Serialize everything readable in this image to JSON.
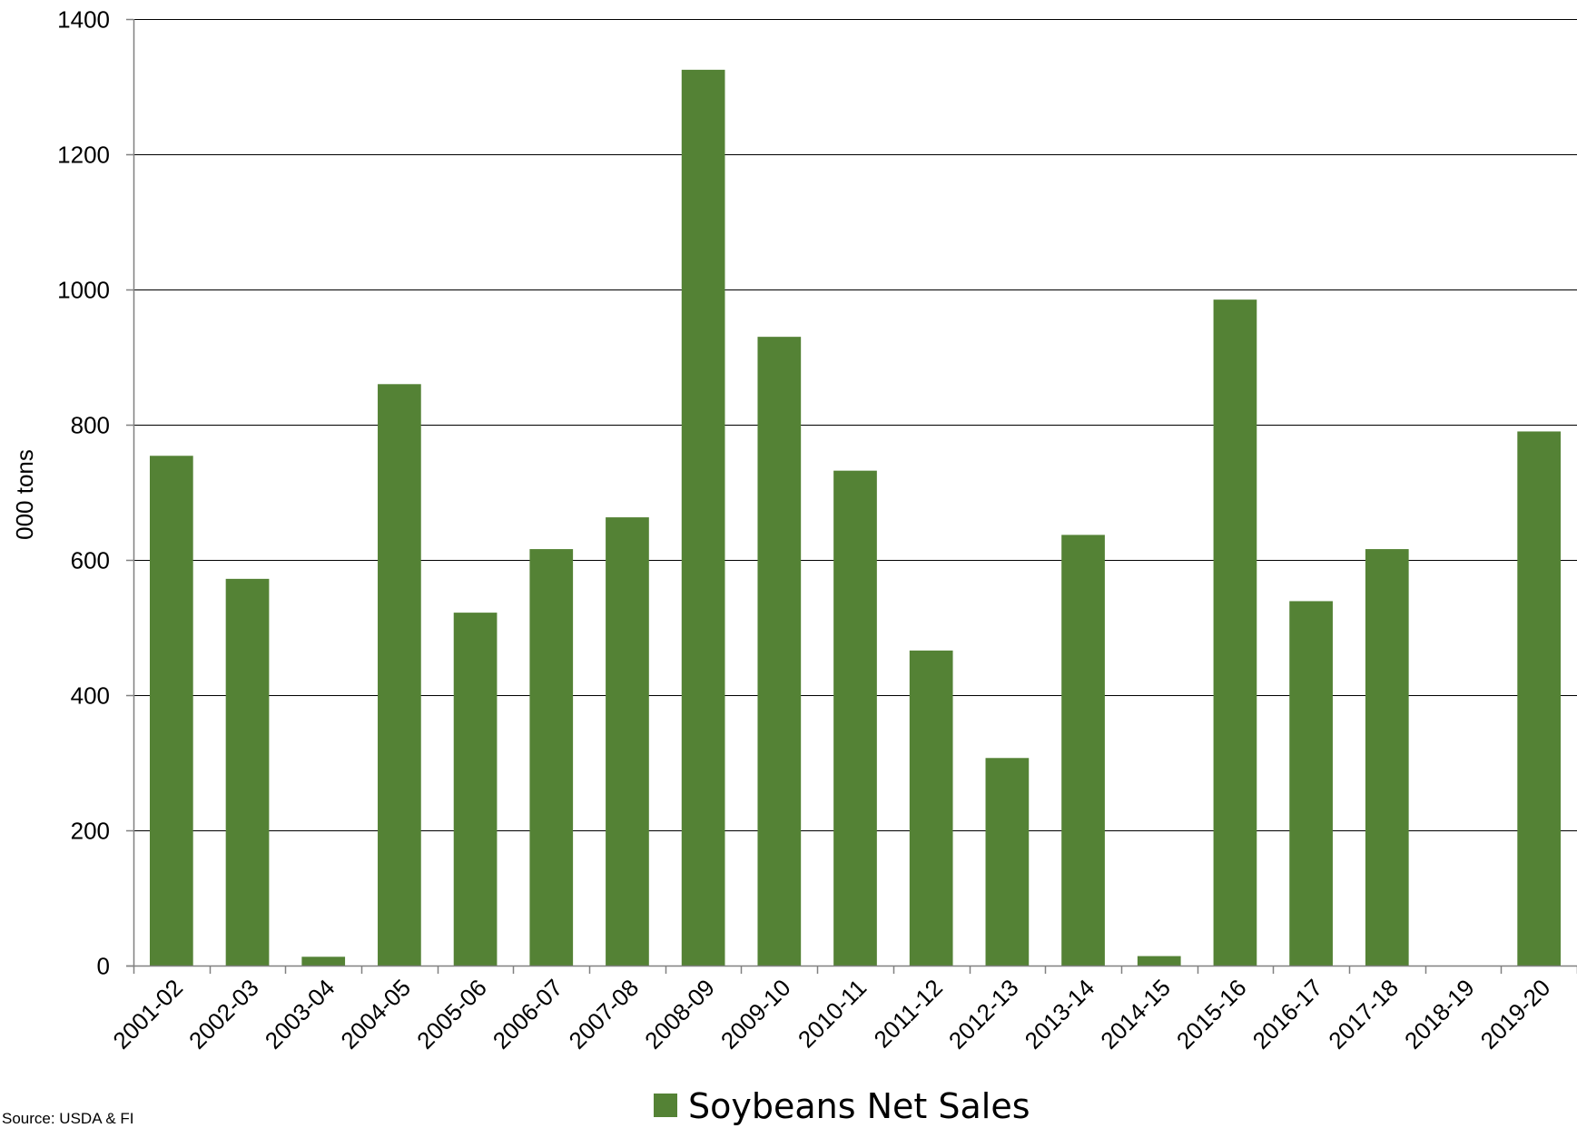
{
  "chart_data": {
    "type": "bar",
    "categories": [
      "2001-02",
      "2002-03",
      "2003-04",
      "2004-05",
      "2005-06",
      "2006-07",
      "2007-08",
      "2008-09",
      "2009-10",
      "2010-11",
      "2011-12",
      "2012-13",
      "2013-14",
      "2014-15",
      "2015-16",
      "2016-17",
      "2017-18",
      "2018-19",
      "2019-20"
    ],
    "series": [
      {
        "name": "Soybeans Net Sales",
        "color": "#548235",
        "values": [
          754,
          572,
          13,
          860,
          522,
          616,
          663,
          1325,
          930,
          732,
          466,
          307,
          637,
          14,
          985,
          539,
          616,
          0,
          790
        ]
      }
    ],
    "title": "",
    "xlabel": "",
    "ylabel": "000 tons",
    "ylim": [
      0,
      1400
    ],
    "yticks": [
      0,
      200,
      400,
      600,
      800,
      1000,
      1200,
      1400
    ],
    "grid": true,
    "legend_position": "bottom-center",
    "source": "Source: USDA & FI"
  }
}
